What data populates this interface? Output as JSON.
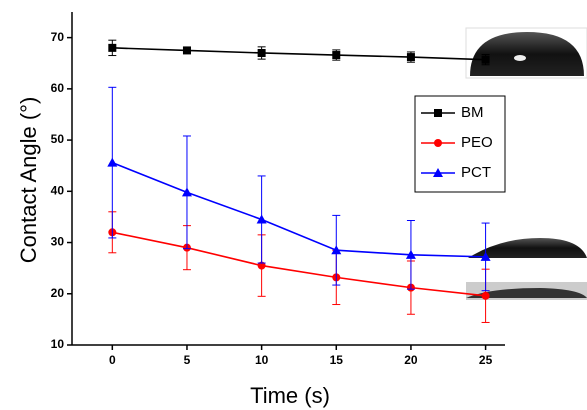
{
  "chart_data": {
    "type": "line",
    "x_label": "Time (s)",
    "y_label": "Contact Angle (°)",
    "x": [
      0,
      5,
      10,
      15,
      20,
      25
    ],
    "xlim": [
      -2.7,
      26.3
    ],
    "xticks": [
      0,
      5,
      10,
      15,
      20,
      25
    ],
    "ylim": [
      10,
      75
    ],
    "yticks": [
      10,
      20,
      30,
      40,
      50,
      60,
      70
    ],
    "legend": "upper right",
    "series": [
      {
        "name": "BM",
        "color": "#000000",
        "marker": "square",
        "values": [
          68,
          67.5,
          67,
          66.6,
          66.2,
          65.7
        ],
        "errors": [
          1.5,
          0.5,
          1.2,
          1,
          1,
          1
        ]
      },
      {
        "name": "PEO",
        "color": "#ff0000",
        "marker": "circle",
        "values": [
          32,
          29,
          25.5,
          23.2,
          21.2,
          19.6
        ],
        "errors": [
          4,
          4.3,
          6,
          5.3,
          5.2,
          5.2
        ]
      },
      {
        "name": "PCT",
        "color": "#0000ff",
        "marker": "triangle",
        "values": [
          45.6,
          39.8,
          34.5,
          28.5,
          27.6,
          27.2
        ],
        "errors": [
          14.7,
          11,
          8.5,
          6.8,
          6.7,
          6.6
        ]
      }
    ]
  }
}
